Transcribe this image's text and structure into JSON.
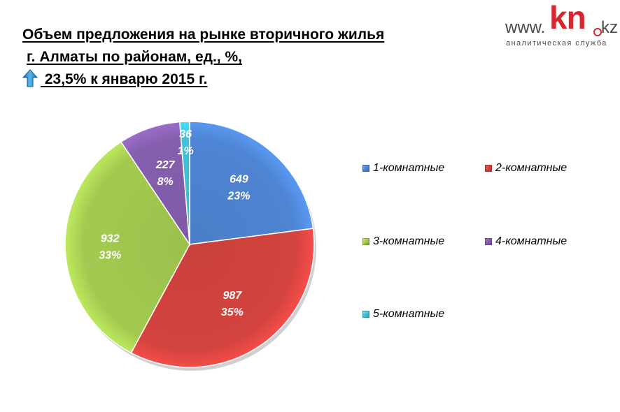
{
  "title": {
    "line1": "Объем предложения на  рынке вторичного жилья",
    "line2": " г. Алматы по районам, ед., %,",
    "line3": " 23,5%  к январю 2015 г.",
    "trend_icon": "up-arrow-icon"
  },
  "logo": {
    "www": "www.",
    "kn": "kn",
    "kz": "kz",
    "subtitle": "аналитическая служба",
    "brand_color": "#d7262e"
  },
  "chart_data": {
    "type": "pie",
    "title": "",
    "legend_position": "right",
    "slices": [
      {
        "name": "1-комнатные",
        "value": 649,
        "percent": "23%",
        "color": "#4a7ec8"
      },
      {
        "name": "2-комнатные",
        "value": 987,
        "percent": "35%",
        "color": "#c9403c"
      },
      {
        "name": "3-комнатные",
        "value": 932,
        "percent": "33%",
        "color": "#9bc04c"
      },
      {
        "name": "4-комнатные",
        "value": 227,
        "percent": "8%",
        "color": "#7f5aa6"
      },
      {
        "name": "5-комнатные",
        "value": 36,
        "percent": "1%",
        "color": "#3cb9cf"
      }
    ]
  }
}
